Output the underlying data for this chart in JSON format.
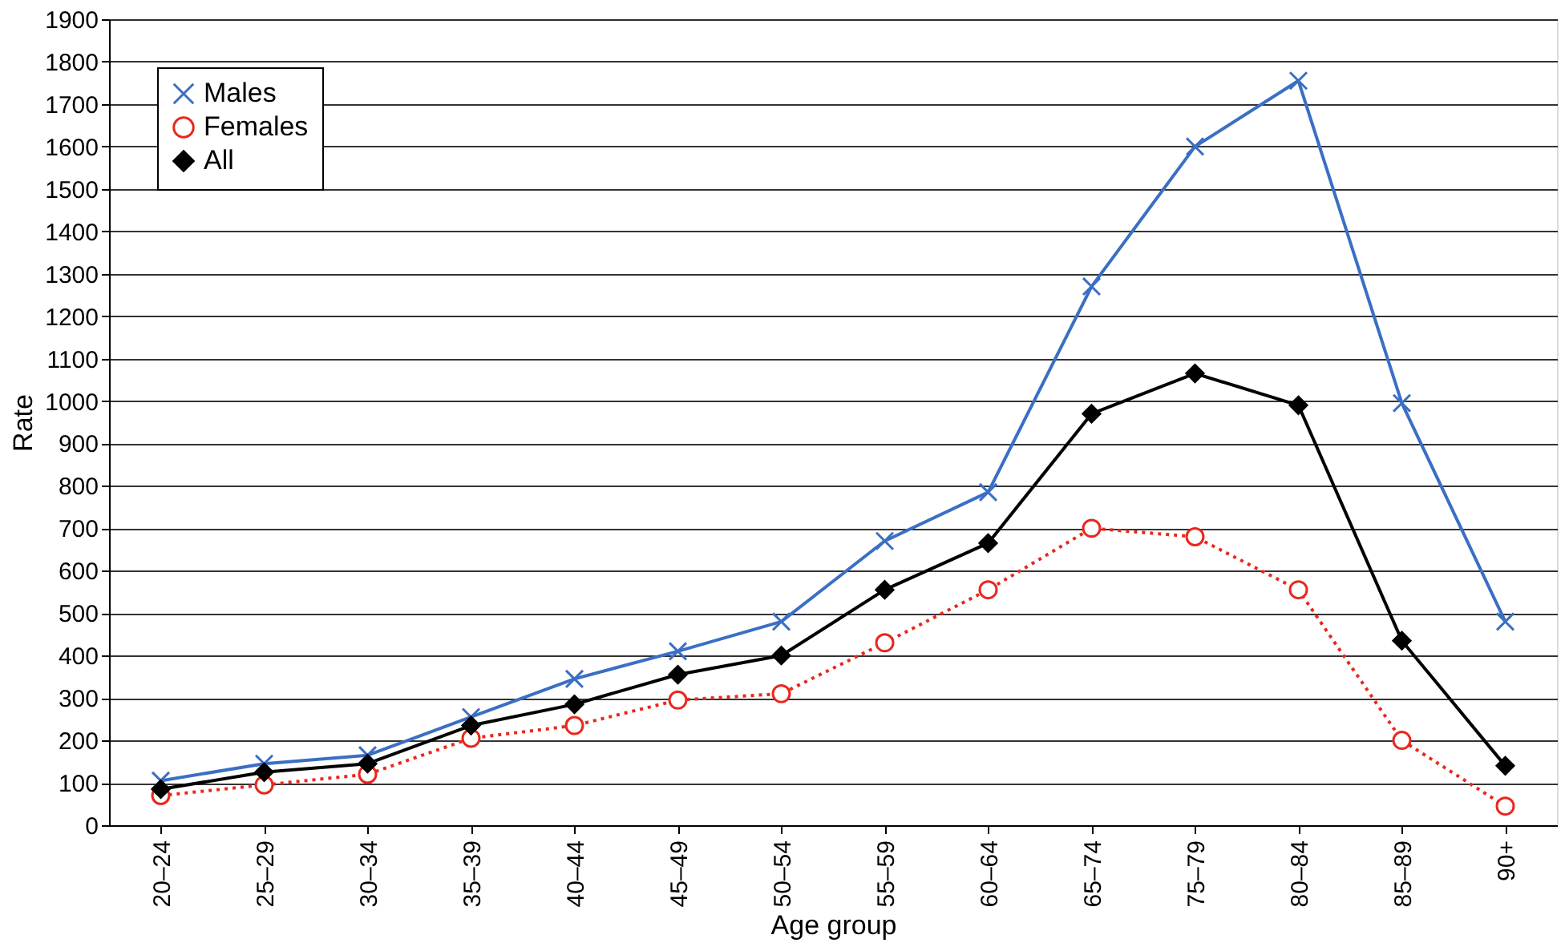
{
  "chart_data": {
    "type": "line",
    "xlabel": "Age group",
    "ylabel": "Rate",
    "categories": [
      "20–24",
      "25–29",
      "30–34",
      "35–39",
      "40–44",
      "45–49",
      "50–54",
      "55–59",
      "60–64",
      "65–74",
      "75–79",
      "80–84",
      "85–89",
      "90+"
    ],
    "series": [
      {
        "name": "Males",
        "color": "#3a6fc4",
        "marker": "cross",
        "line_style": "solid",
        "values": [
          105,
          145,
          165,
          255,
          345,
          410,
          480,
          670,
          785,
          1270,
          1600,
          1755,
          995,
          480
        ]
      },
      {
        "name": "Females",
        "color": "#e8281e",
        "marker": "circle",
        "line_style": "dotted",
        "values": [
          70,
          95,
          120,
          205,
          235,
          295,
          310,
          430,
          555,
          700,
          680,
          555,
          200,
          45
        ]
      },
      {
        "name": "All",
        "color": "#000000",
        "marker": "diamond",
        "line_style": "solid",
        "values": [
          85,
          125,
          145,
          235,
          285,
          355,
          400,
          555,
          665,
          970,
          1065,
          990,
          435,
          140
        ]
      }
    ],
    "ylim": [
      0,
      1900
    ],
    "yticks": [
      0,
      100,
      200,
      300,
      400,
      500,
      600,
      700,
      800,
      900,
      1000,
      1100,
      1200,
      1300,
      1400,
      1500,
      1600,
      1700,
      1800,
      1900
    ],
    "grid": "y",
    "legend": "top left"
  }
}
